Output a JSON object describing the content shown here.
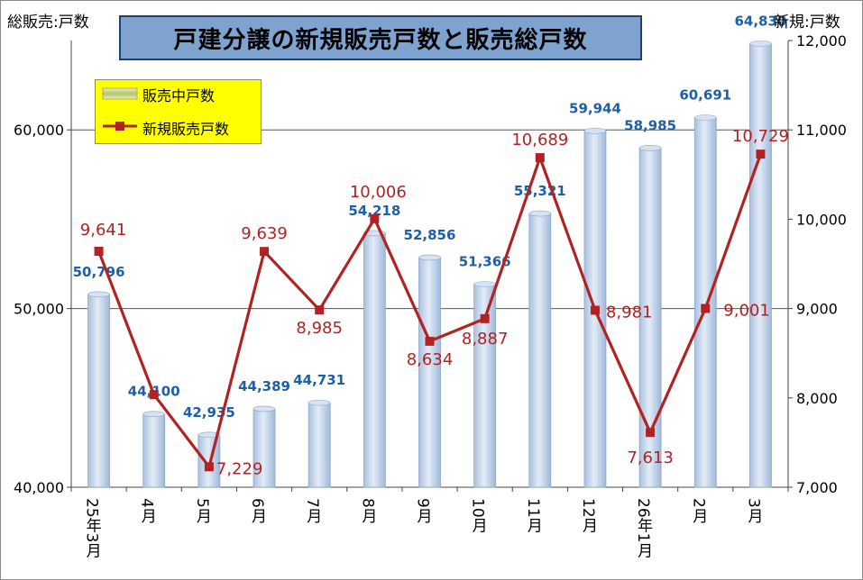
{
  "chart_data": {
    "type": "bar+line",
    "title": "戸建分譲の新規販売戸数と販売総戸数",
    "left_axis_label": "総販売:戸数",
    "right_axis_label": "新規:戸数",
    "categories": [
      "25年3月",
      "4月",
      "5月",
      "6月",
      "7月",
      "8月",
      "9月",
      "10月",
      "11月",
      "12月",
      "26年1月",
      "2月",
      "3月"
    ],
    "left_axis": {
      "ylim": [
        40000,
        65000
      ],
      "ticks": [
        "40,000",
        "50,000",
        "60,000"
      ],
      "tick_values": [
        40000,
        50000,
        60000
      ]
    },
    "right_axis": {
      "ylim": [
        7000,
        12000
      ],
      "ticks": [
        "7,000",
        "8,000",
        "9,000",
        "10,000",
        "11,000",
        "12,000"
      ],
      "tick_values": [
        7000,
        8000,
        9000,
        10000,
        11000,
        12000
      ]
    },
    "grid": "horizontal at 50,000 and 60,000",
    "legend_position": "top-left",
    "series": [
      {
        "name": "販売中戸数",
        "type": "bar",
        "axis": "left",
        "color": "#b9cde6",
        "label_color": "#1f5fa8",
        "values": [
          50796,
          44100,
          42935,
          44389,
          44731,
          54218,
          52856,
          51366,
          55321,
          59944,
          58985,
          60691,
          64830
        ],
        "labels": [
          "50,796",
          "44,100",
          "42,935",
          "44,389",
          "44,731",
          "54,218",
          "52,856",
          "51,366",
          "55,321",
          "59,944",
          "58,985",
          "60,691",
          "64,830"
        ]
      },
      {
        "name": "新規販売戸数",
        "type": "line",
        "axis": "right",
        "color": "#b22222",
        "values": [
          9641,
          8037,
          7229,
          9639,
          8985,
          10006,
          8634,
          8887,
          10689,
          8981,
          7613,
          9001,
          10729
        ],
        "labels": [
          "9,641",
          "",
          "7,229",
          "9,639",
          "8,985",
          "10,006",
          "8,634",
          "8,887",
          "10,689",
          "8,981",
          "7,613",
          "9,001",
          "10,729"
        ]
      }
    ]
  }
}
